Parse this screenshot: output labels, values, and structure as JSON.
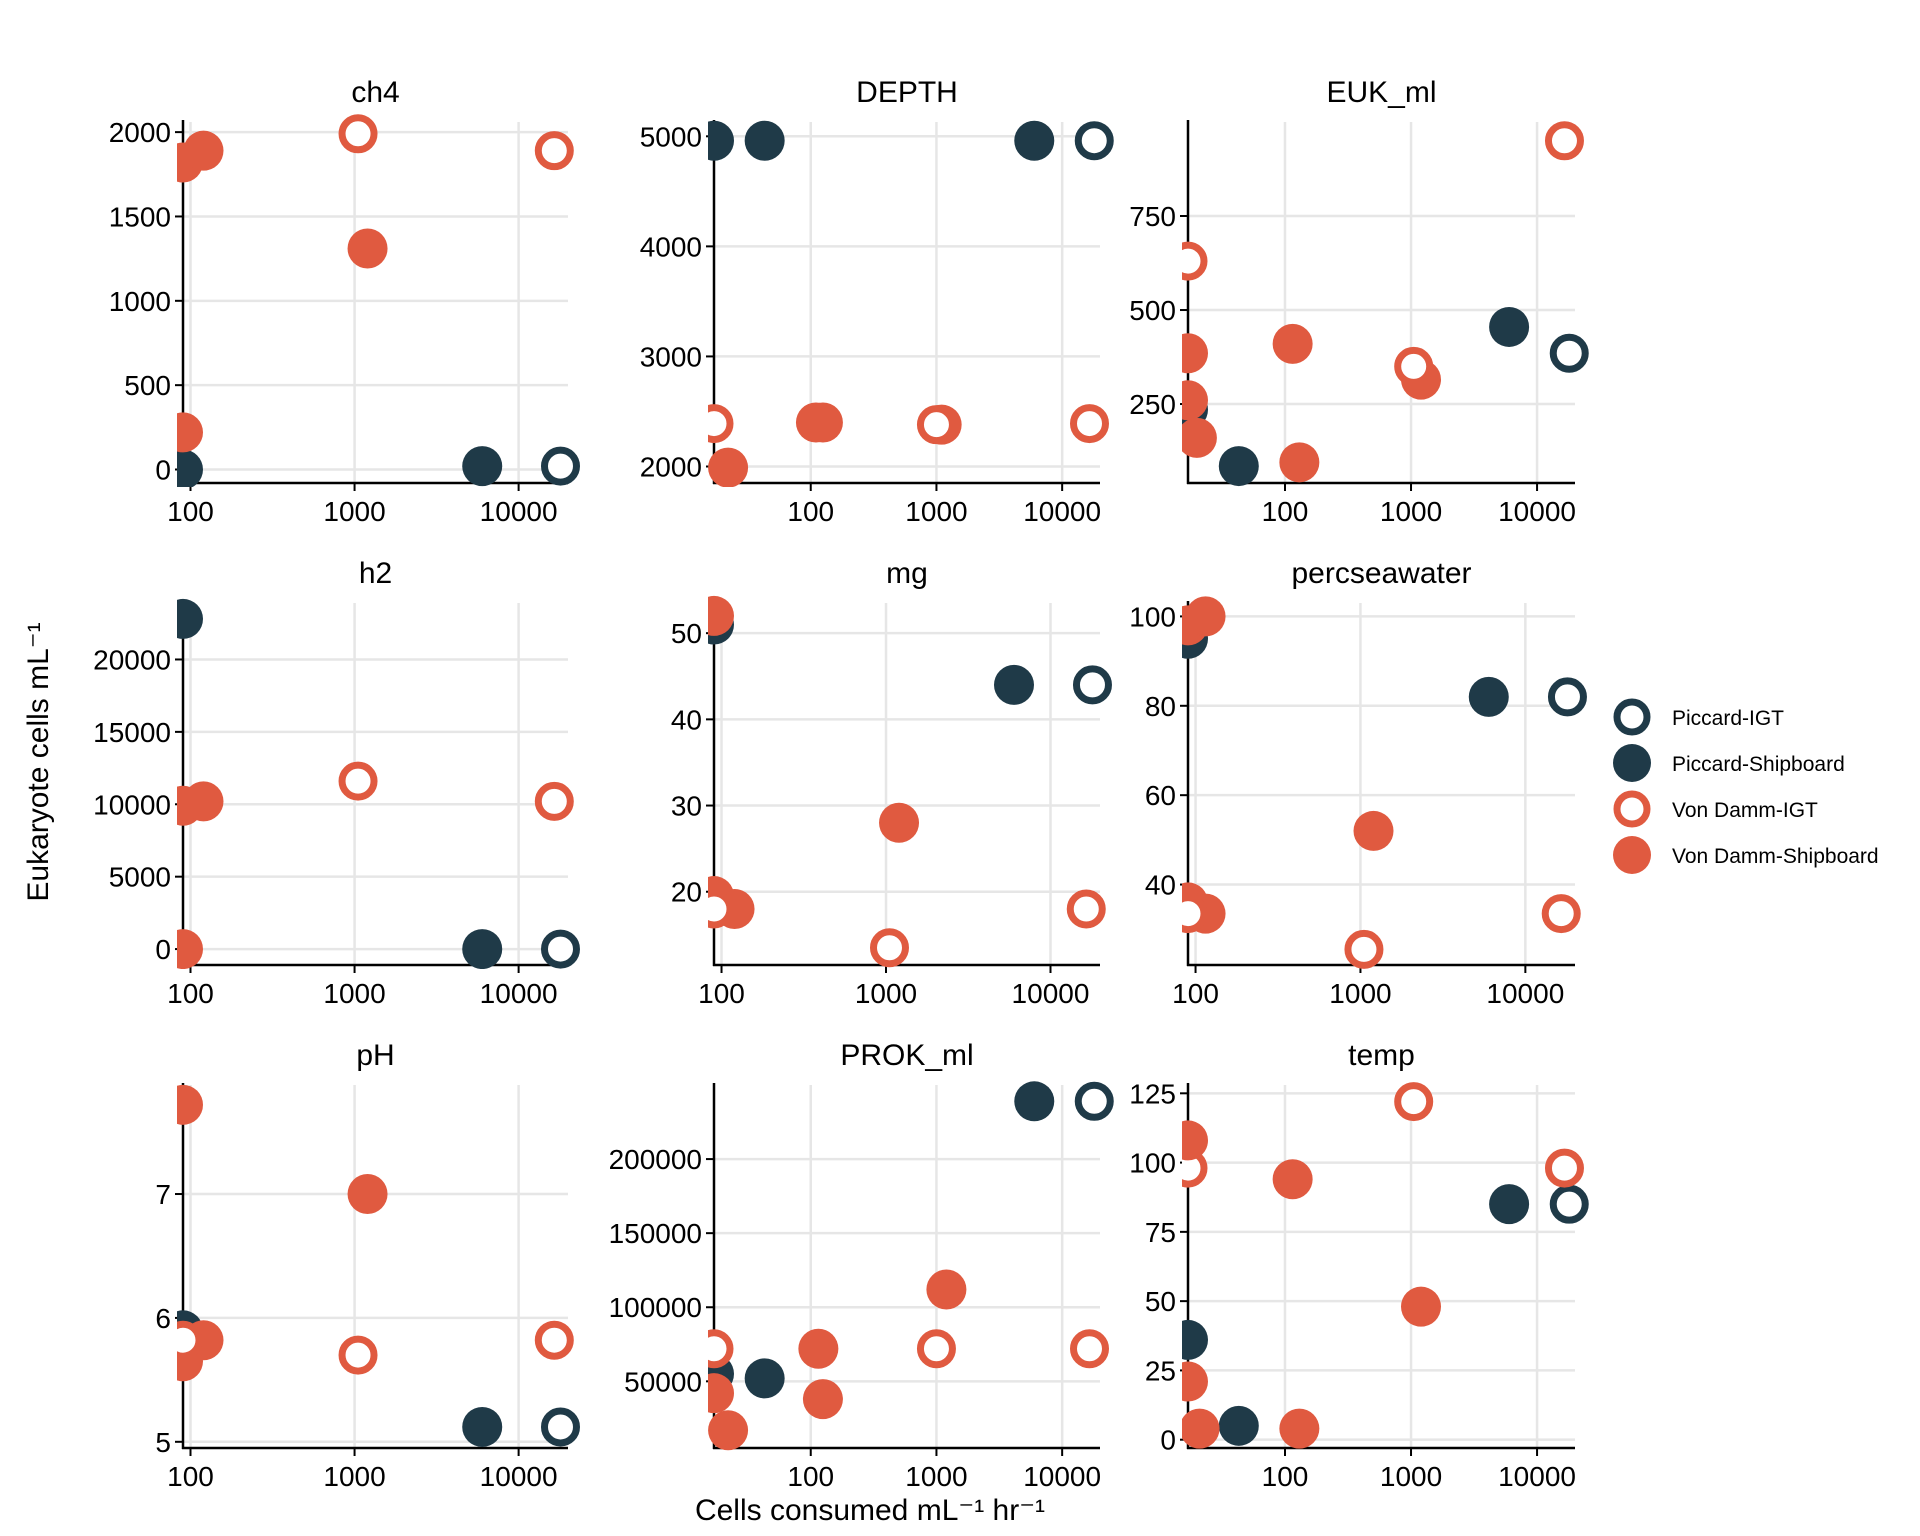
{
  "chart_data": {
    "type": "scatter",
    "xlabel": "Cells consumed  mL⁻¹ hr⁻¹",
    "ylabel": "Eukaryote cells  mL⁻¹",
    "xscale": "log",
    "grid": true,
    "legend_position": "right",
    "legend": [
      {
        "name": "Piccard-IGT",
        "color": "#1f3a48",
        "filled": false
      },
      {
        "name": "Piccard-Shipboard",
        "color": "#1f3a48",
        "filled": true
      },
      {
        "name": "Von Damm-IGT",
        "color": "#e05a40",
        "filled": false
      },
      {
        "name": "Von Damm-Shipboard",
        "color": "#e05a40",
        "filled": true
      }
    ],
    "panels": [
      {
        "title": "ch4",
        "xlim": [
          90,
          20000
        ],
        "ylim": [
          -80,
          2060
        ],
        "xticks": [
          100,
          1000,
          10000
        ],
        "xtick_labels": [
          "100",
          "1000",
          "10000"
        ],
        "yticks": [
          0,
          500,
          1000,
          1500,
          2000
        ],
        "ytick_labels": [
          "0",
          "500",
          "1000",
          "1500",
          "2000"
        ],
        "points": [
          {
            "x": 90,
            "y": 0,
            "series": "Piccard-Shipboard"
          },
          {
            "x": 6000,
            "y": 20,
            "series": "Piccard-Shipboard"
          },
          {
            "x": 18000,
            "y": 20,
            "series": "Piccard-IGT"
          },
          {
            "x": 90,
            "y": 1820,
            "series": "Von Damm-Shipboard"
          },
          {
            "x": 120,
            "y": 1890,
            "series": "Von Damm-Shipboard"
          },
          {
            "x": 1200,
            "y": 1310,
            "series": "Von Damm-Shipboard"
          },
          {
            "x": 90,
            "y": 220,
            "series": "Von Damm-Shipboard"
          },
          {
            "x": 1050,
            "y": 1990,
            "series": "Von Damm-IGT"
          },
          {
            "x": 16500,
            "y": 1890,
            "series": "Von Damm-IGT"
          }
        ]
      },
      {
        "title": "DEPTH",
        "xlim": [
          17,
          20000
        ],
        "ylim": [
          1850,
          5130
        ],
        "xticks": [
          100,
          1000,
          10000
        ],
        "xtick_labels": [
          "100",
          "1000",
          "10000"
        ],
        "yticks": [
          2000,
          3000,
          4000,
          5000
        ],
        "ytick_labels": [
          "2000",
          "3000",
          "4000",
          "5000"
        ],
        "points": [
          {
            "x": 17,
            "y": 4960,
            "series": "Piccard-Shipboard"
          },
          {
            "x": 43,
            "y": 4960,
            "series": "Piccard-Shipboard"
          },
          {
            "x": 6000,
            "y": 4960,
            "series": "Piccard-Shipboard"
          },
          {
            "x": 18000,
            "y": 4960,
            "series": "Piccard-IGT"
          },
          {
            "x": 17,
            "y": 2390,
            "series": "Von Damm-IGT"
          },
          {
            "x": 22,
            "y": 1990,
            "series": "Von Damm-Shipboard"
          },
          {
            "x": 110,
            "y": 2400,
            "series": "Von Damm-Shipboard"
          },
          {
            "x": 125,
            "y": 2400,
            "series": "Von Damm-Shipboard"
          },
          {
            "x": 1100,
            "y": 2380,
            "series": "Von Damm-Shipboard"
          },
          {
            "x": 1000,
            "y": 2380,
            "series": "Von Damm-IGT"
          },
          {
            "x": 16500,
            "y": 2390,
            "series": "Von Damm-IGT"
          }
        ]
      },
      {
        "title": "EUK_ml",
        "xlim": [
          17,
          20000
        ],
        "ylim": [
          40,
          1000
        ],
        "xticks": [
          100,
          1000,
          10000
        ],
        "xtick_labels": [
          "100",
          "1000",
          "10000"
        ],
        "yticks": [
          250,
          500,
          750
        ],
        "ytick_labels": [
          "250",
          "500",
          "750"
        ],
        "points": [
          {
            "x": 17,
            "y": 235,
            "series": "Piccard-Shipboard"
          },
          {
            "x": 43,
            "y": 85,
            "series": "Piccard-Shipboard"
          },
          {
            "x": 6000,
            "y": 455,
            "series": "Piccard-Shipboard"
          },
          {
            "x": 18000,
            "y": 385,
            "series": "Piccard-IGT"
          },
          {
            "x": 17,
            "y": 630,
            "series": "Von Damm-IGT"
          },
          {
            "x": 17,
            "y": 385,
            "series": "Von Damm-Shipboard"
          },
          {
            "x": 17,
            "y": 260,
            "series": "Von Damm-Shipboard"
          },
          {
            "x": 20,
            "y": 160,
            "series": "Von Damm-Shipboard"
          },
          {
            "x": 115,
            "y": 410,
            "series": "Von Damm-Shipboard"
          },
          {
            "x": 130,
            "y": 95,
            "series": "Von Damm-Shipboard"
          },
          {
            "x": 1200,
            "y": 315,
            "series": "Von Damm-Shipboard"
          },
          {
            "x": 1050,
            "y": 350,
            "series": "Von Damm-IGT"
          },
          {
            "x": 16500,
            "y": 950,
            "series": "Von Damm-IGT"
          }
        ]
      },
      {
        "title": "h2",
        "xlim": [
          90,
          20000
        ],
        "ylim": [
          -1100,
          23900
        ],
        "xticks": [
          100,
          1000,
          10000
        ],
        "xtick_labels": [
          "100",
          "1000",
          "10000"
        ],
        "yticks": [
          0,
          5000,
          10000,
          15000,
          20000
        ],
        "ytick_labels": [
          "0",
          "5000",
          "10000",
          "15000",
          "20000"
        ],
        "points": [
          {
            "x": 90,
            "y": 22800,
            "series": "Piccard-Shipboard"
          },
          {
            "x": 6000,
            "y": 0,
            "series": "Piccard-Shipboard"
          },
          {
            "x": 18000,
            "y": 0,
            "series": "Piccard-IGT"
          },
          {
            "x": 90,
            "y": 9900,
            "series": "Von Damm-Shipboard"
          },
          {
            "x": 120,
            "y": 10200,
            "series": "Von Damm-Shipboard"
          },
          {
            "x": 90,
            "y": 0,
            "series": "Von Damm-Shipboard"
          },
          {
            "x": 1050,
            "y": 11600,
            "series": "Von Damm-IGT"
          },
          {
            "x": 16500,
            "y": 10200,
            "series": "Von Damm-IGT"
          }
        ]
      },
      {
        "title": "mg",
        "xlim": [
          90,
          20000
        ],
        "ylim": [
          11.5,
          53.5
        ],
        "xticks": [
          100,
          1000,
          10000
        ],
        "xtick_labels": [
          "100",
          "1000",
          "10000"
        ],
        "yticks": [
          20,
          30,
          40,
          50
        ],
        "ytick_labels": [
          "20",
          "30",
          "40",
          "50"
        ],
        "points": [
          {
            "x": 90,
            "y": 51,
            "series": "Piccard-Shipboard"
          },
          {
            "x": 6000,
            "y": 44,
            "series": "Piccard-Shipboard"
          },
          {
            "x": 18000,
            "y": 44,
            "series": "Piccard-IGT"
          },
          {
            "x": 90,
            "y": 52,
            "series": "Von Damm-Shipboard"
          },
          {
            "x": 90,
            "y": 19.5,
            "series": "Von Damm-Shipboard"
          },
          {
            "x": 120,
            "y": 18,
            "series": "Von Damm-Shipboard"
          },
          {
            "x": 1200,
            "y": 28,
            "series": "Von Damm-Shipboard"
          },
          {
            "x": 90,
            "y": 18,
            "series": "Von Damm-IGT"
          },
          {
            "x": 1050,
            "y": 13.5,
            "series": "Von Damm-IGT"
          },
          {
            "x": 16500,
            "y": 18,
            "series": "Von Damm-IGT"
          }
        ]
      },
      {
        "title": "percseawater",
        "xlim": [
          90,
          20000
        ],
        "ylim": [
          22,
          103
        ],
        "xticks": [
          100,
          1000,
          10000
        ],
        "xtick_labels": [
          "100",
          "1000",
          "10000"
        ],
        "yticks": [
          40,
          60,
          80,
          100
        ],
        "ytick_labels": [
          "40",
          "60",
          "80",
          "100"
        ],
        "points": [
          {
            "x": 90,
            "y": 95,
            "series": "Piccard-Shipboard"
          },
          {
            "x": 6000,
            "y": 82,
            "series": "Piccard-Shipboard"
          },
          {
            "x": 18000,
            "y": 82,
            "series": "Piccard-IGT"
          },
          {
            "x": 90,
            "y": 98,
            "series": "Von Damm-Shipboard"
          },
          {
            "x": 115,
            "y": 100,
            "series": "Von Damm-Shipboard"
          },
          {
            "x": 90,
            "y": 36,
            "series": "Von Damm-Shipboard"
          },
          {
            "x": 115,
            "y": 33.5,
            "series": "Von Damm-Shipboard"
          },
          {
            "x": 1200,
            "y": 52,
            "series": "Von Damm-Shipboard"
          },
          {
            "x": 90,
            "y": 33.5,
            "series": "Von Damm-IGT"
          },
          {
            "x": 1050,
            "y": 25.5,
            "series": "Von Damm-IGT"
          },
          {
            "x": 16500,
            "y": 33.5,
            "series": "Von Damm-IGT"
          }
        ]
      },
      {
        "title": "pH",
        "xlim": [
          90,
          20000
        ],
        "ylim": [
          4.95,
          7.88
        ],
        "xticks": [
          100,
          1000,
          10000
        ],
        "xtick_labels": [
          "100",
          "1000",
          "10000"
        ],
        "yticks": [
          5,
          6,
          7
        ],
        "ytick_labels": [
          "5",
          "6",
          "7"
        ],
        "points": [
          {
            "x": 90,
            "y": 5.9,
            "series": "Piccard-Shipboard"
          },
          {
            "x": 6000,
            "y": 5.12,
            "series": "Piccard-Shipboard"
          },
          {
            "x": 18000,
            "y": 5.12,
            "series": "Piccard-IGT"
          },
          {
            "x": 90,
            "y": 7.72,
            "series": "Von Damm-Shipboard"
          },
          {
            "x": 90,
            "y": 5.65,
            "series": "Von Damm-Shipboard"
          },
          {
            "x": 120,
            "y": 5.82,
            "series": "Von Damm-Shipboard"
          },
          {
            "x": 1200,
            "y": 7.0,
            "series": "Von Damm-Shipboard"
          },
          {
            "x": 90,
            "y": 5.82,
            "series": "Von Damm-IGT"
          },
          {
            "x": 1050,
            "y": 5.7,
            "series": "Von Damm-IGT"
          },
          {
            "x": 16500,
            "y": 5.82,
            "series": "Von Damm-IGT"
          }
        ]
      },
      {
        "title": "PROK_ml",
        "xlim": [
          17,
          20000
        ],
        "ylim": [
          5000,
          250000
        ],
        "xticks": [
          100,
          1000,
          10000
        ],
        "xtick_labels": [
          "100",
          "1000",
          "10000"
        ],
        "yticks": [
          50000,
          100000,
          150000,
          200000
        ],
        "ytick_labels": [
          "50000",
          "100000",
          "150000",
          "200000"
        ],
        "points": [
          {
            "x": 17,
            "y": 55000,
            "series": "Piccard-Shipboard"
          },
          {
            "x": 43,
            "y": 52000,
            "series": "Piccard-Shipboard"
          },
          {
            "x": 6000,
            "y": 239000,
            "series": "Piccard-Shipboard"
          },
          {
            "x": 18000,
            "y": 239000,
            "series": "Piccard-IGT"
          },
          {
            "x": 17,
            "y": 72000,
            "series": "Von Damm-IGT"
          },
          {
            "x": 17,
            "y": 42000,
            "series": "Von Damm-Shipboard"
          },
          {
            "x": 22,
            "y": 17000,
            "series": "Von Damm-Shipboard"
          },
          {
            "x": 115,
            "y": 72000,
            "series": "Von Damm-Shipboard"
          },
          {
            "x": 125,
            "y": 38000,
            "series": "Von Damm-Shipboard"
          },
          {
            "x": 1200,
            "y": 112000,
            "series": "Von Damm-Shipboard"
          },
          {
            "x": 1000,
            "y": 72000,
            "series": "Von Damm-IGT"
          },
          {
            "x": 16500,
            "y": 72000,
            "series": "Von Damm-IGT"
          }
        ]
      },
      {
        "title": "temp",
        "xlim": [
          17,
          20000
        ],
        "ylim": [
          -3,
          128
        ],
        "xticks": [
          100,
          1000,
          10000
        ],
        "xtick_labels": [
          "100",
          "1000",
          "10000"
        ],
        "yticks": [
          0,
          25,
          50,
          75,
          100,
          125
        ],
        "ytick_labels": [
          "0",
          "25",
          "50",
          "75",
          "100",
          "125"
        ],
        "points": [
          {
            "x": 17,
            "y": 36,
            "series": "Piccard-Shipboard"
          },
          {
            "x": 43,
            "y": 5,
            "series": "Piccard-Shipboard"
          },
          {
            "x": 6000,
            "y": 85,
            "series": "Piccard-Shipboard"
          },
          {
            "x": 18000,
            "y": 85,
            "series": "Piccard-IGT"
          },
          {
            "x": 17,
            "y": 98,
            "series": "Von Damm-IGT"
          },
          {
            "x": 17,
            "y": 108,
            "series": "Von Damm-Shipboard"
          },
          {
            "x": 17,
            "y": 21,
            "series": "Von Damm-Shipboard"
          },
          {
            "x": 21,
            "y": 4,
            "series": "Von Damm-Shipboard"
          },
          {
            "x": 115,
            "y": 94,
            "series": "Von Damm-Shipboard"
          },
          {
            "x": 130,
            "y": 4,
            "series": "Von Damm-Shipboard"
          },
          {
            "x": 1200,
            "y": 48,
            "series": "Von Damm-Shipboard"
          },
          {
            "x": 1050,
            "y": 122,
            "series": "Von Damm-IGT"
          },
          {
            "x": 16500,
            "y": 98,
            "series": "Von Damm-IGT"
          }
        ]
      }
    ]
  }
}
